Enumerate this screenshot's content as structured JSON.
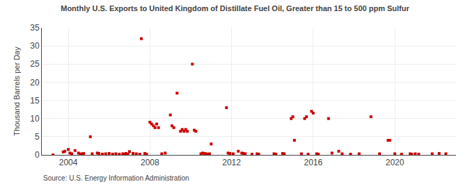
{
  "chart_data": {
    "type": "scatter",
    "title": "Monthly U.S. Exports to United Kingdom of Distillate Fuel Oil, Greater than 15 to 500 ppm Sulfur",
    "ylabel": "Thousand Barrels per Day",
    "annotations": [
      "Source: U.S. Energy Information Administration"
    ],
    "color": "#cc0000",
    "marker": "square",
    "grid": true,
    "xlim": [
      2002.7,
      2023.0
    ],
    "xticks": [
      2004,
      2008,
      2012,
      2016,
      2020
    ],
    "ylim": [
      0,
      35
    ],
    "yticks": [
      0,
      5,
      10,
      15,
      20,
      25,
      30,
      35
    ],
    "x": [
      2003.25,
      2003.75,
      2003.83,
      2004.0,
      2004.08,
      2004.17,
      2004.33,
      2004.5,
      2004.58,
      2004.67,
      2004.75,
      2005.08,
      2005.17,
      2005.42,
      2005.5,
      2005.67,
      2005.83,
      2006.0,
      2006.17,
      2006.33,
      2006.5,
      2006.67,
      2006.75,
      2006.83,
      2006.92,
      2007.0,
      2007.17,
      2007.33,
      2007.5,
      2007.58,
      2007.75,
      2007.83,
      2008.0,
      2008.08,
      2008.17,
      2008.25,
      2008.33,
      2008.42,
      2008.58,
      2008.75,
      2009.0,
      2009.08,
      2009.17,
      2009.33,
      2009.5,
      2009.58,
      2009.67,
      2009.75,
      2009.83,
      2010.08,
      2010.17,
      2010.25,
      2010.5,
      2010.58,
      2010.67,
      2010.75,
      2010.83,
      2010.92,
      2011.0,
      2011.75,
      2011.83,
      2011.92,
      2012.08,
      2012.33,
      2012.5,
      2012.58,
      2012.67,
      2013.0,
      2013.25,
      2013.33,
      2014.08,
      2014.17,
      2014.5,
      2014.58,
      2014.92,
      2015.0,
      2015.08,
      2015.42,
      2015.58,
      2015.67,
      2015.75,
      2015.92,
      2016.0,
      2016.17,
      2016.25,
      2016.75,
      2016.92,
      2017.25,
      2017.42,
      2017.83,
      2018.25,
      2018.83,
      2019.25,
      2019.67,
      2019.75,
      2020.0,
      2020.33,
      2020.75,
      2020.83,
      2021.0,
      2021.17,
      2021.83,
      2022.17,
      2022.5
    ],
    "values": [
      0.0,
      0.8,
      1.0,
      1.5,
      0.5,
      0.3,
      1.2,
      0.5,
      0.2,
      0.3,
      0.4,
      5.0,
      0.3,
      0.5,
      0.4,
      0.2,
      0.3,
      0.4,
      0.2,
      0.3,
      0.2,
      0.3,
      0.2,
      0.4,
      0.2,
      0.9,
      0.4,
      0.3,
      0.2,
      32.0,
      0.4,
      0.2,
      9.0,
      8.5,
      8.0,
      7.5,
      8.5,
      7.5,
      0.3,
      0.5,
      11.0,
      8.0,
      7.5,
      17.0,
      6.5,
      7.0,
      6.5,
      7.0,
      6.5,
      25.0,
      6.8,
      6.5,
      0.3,
      0.5,
      0.4,
      0.3,
      0.2,
      0.3,
      3.0,
      13.0,
      0.5,
      0.4,
      0.3,
      1.0,
      0.5,
      0.4,
      0.3,
      0.2,
      0.3,
      0.2,
      0.3,
      0.2,
      0.4,
      0.3,
      10.0,
      10.5,
      4.0,
      0.3,
      10.0,
      10.5,
      0.2,
      12.0,
      11.5,
      0.3,
      0.2,
      10.0,
      0.5,
      1.0,
      0.3,
      0.2,
      0.3,
      10.5,
      0.3,
      4.0,
      4.0,
      0.3,
      0.2,
      0.3,
      0.2,
      0.3,
      0.2,
      0.3,
      0.4,
      0.3
    ]
  }
}
